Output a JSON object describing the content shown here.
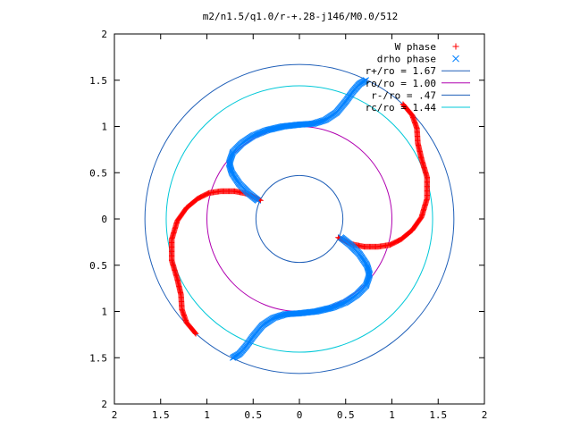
{
  "chart_data": {
    "type": "scatter",
    "title": "m2/n1.5/q1.0/r-+.28-j146/M0.0/512",
    "xlabel": "",
    "ylabel": "",
    "xlim": [
      -2,
      2
    ],
    "ylim": [
      -2,
      2
    ],
    "xticks": [
      -2,
      -1.5,
      -1,
      -0.5,
      0,
      0.5,
      1,
      1.5,
      2
    ],
    "yticks": [
      -2,
      -1.5,
      -1,
      -0.5,
      0,
      0.5,
      1,
      1.5,
      2
    ],
    "xtick_labels": [
      "2",
      "1.5",
      "1",
      "0.5",
      "0",
      "0.5",
      "1",
      "1.5",
      "2"
    ],
    "ytick_labels": [
      "2",
      "1.5",
      "1",
      "0.5",
      "0",
      "0.5",
      "1",
      "1.5",
      "2"
    ],
    "grid": false,
    "legend_position": "top-right",
    "series": [
      {
        "name": "W phase",
        "kind": "points",
        "marker": "+",
        "color": "#ff0000",
        "arms": [
          [
            [
              0.42,
              -0.2
            ],
            [
              0.55,
              -0.27
            ],
            [
              0.7,
              -0.3
            ],
            [
              0.85,
              -0.3
            ],
            [
              0.98,
              -0.28
            ],
            [
              1.1,
              -0.22
            ],
            [
              1.22,
              -0.12
            ],
            [
              1.32,
              0.02
            ],
            [
              1.38,
              0.22
            ],
            [
              1.38,
              0.45
            ],
            [
              1.32,
              0.65
            ],
            [
              1.28,
              0.82
            ],
            [
              1.27,
              0.98
            ],
            [
              1.22,
              1.12
            ],
            [
              1.12,
              1.24
            ]
          ],
          [
            [
              -0.42,
              0.2
            ],
            [
              -0.55,
              0.27
            ],
            [
              -0.7,
              0.3
            ],
            [
              -0.85,
              0.3
            ],
            [
              -0.98,
              0.28
            ],
            [
              -1.1,
              0.22
            ],
            [
              -1.22,
              0.12
            ],
            [
              -1.32,
              -0.02
            ],
            [
              -1.38,
              -0.22
            ],
            [
              -1.38,
              -0.45
            ],
            [
              -1.32,
              -0.65
            ],
            [
              -1.28,
              -0.82
            ],
            [
              -1.27,
              -0.98
            ],
            [
              -1.22,
              -1.12
            ],
            [
              -1.12,
              -1.24
            ]
          ]
        ]
      },
      {
        "name": "drho phase",
        "kind": "points",
        "marker": "x",
        "color": "#0080ff",
        "arms": [
          [
            [
              -0.45,
              0.2
            ],
            [
              -0.55,
              0.28
            ],
            [
              -0.65,
              0.38
            ],
            [
              -0.73,
              0.5
            ],
            [
              -0.76,
              0.6
            ],
            [
              -0.72,
              0.72
            ],
            [
              -0.62,
              0.82
            ],
            [
              -0.5,
              0.9
            ],
            [
              -0.35,
              0.96
            ],
            [
              -0.18,
              1.0
            ],
            [
              0.0,
              1.02
            ],
            [
              0.15,
              1.03
            ],
            [
              0.28,
              1.07
            ],
            [
              0.4,
              1.15
            ],
            [
              0.5,
              1.27
            ],
            [
              0.58,
              1.38
            ],
            [
              0.65,
              1.46
            ],
            [
              0.72,
              1.5
            ]
          ],
          [
            [
              0.45,
              -0.2
            ],
            [
              0.55,
              -0.28
            ],
            [
              0.65,
              -0.38
            ],
            [
              0.73,
              -0.5
            ],
            [
              0.76,
              -0.6
            ],
            [
              0.72,
              -0.72
            ],
            [
              0.62,
              -0.82
            ],
            [
              0.5,
              -0.9
            ],
            [
              0.35,
              -0.96
            ],
            [
              0.18,
              -1.0
            ],
            [
              0.0,
              -1.02
            ],
            [
              -0.15,
              -1.03
            ],
            [
              -0.28,
              -1.07
            ],
            [
              -0.4,
              -1.15
            ],
            [
              -0.5,
              -1.27
            ],
            [
              -0.58,
              -1.38
            ],
            [
              -0.65,
              -1.46
            ],
            [
              -0.72,
              -1.5
            ]
          ]
        ]
      },
      {
        "name": "r+/ro = 1.67",
        "kind": "circle",
        "radius": 1.67,
        "color": "#1f5fb8"
      },
      {
        "name": "ro/ro = 1.00",
        "kind": "circle",
        "radius": 1.0,
        "color": "#b000b0"
      },
      {
        "name": "r-/ro = .47",
        "kind": "circle",
        "radius": 0.47,
        "color": "#1f5fb8"
      },
      {
        "name": "rc/ro = 1.44",
        "kind": "circle",
        "radius": 1.44,
        "color": "#00c8d8"
      }
    ]
  }
}
